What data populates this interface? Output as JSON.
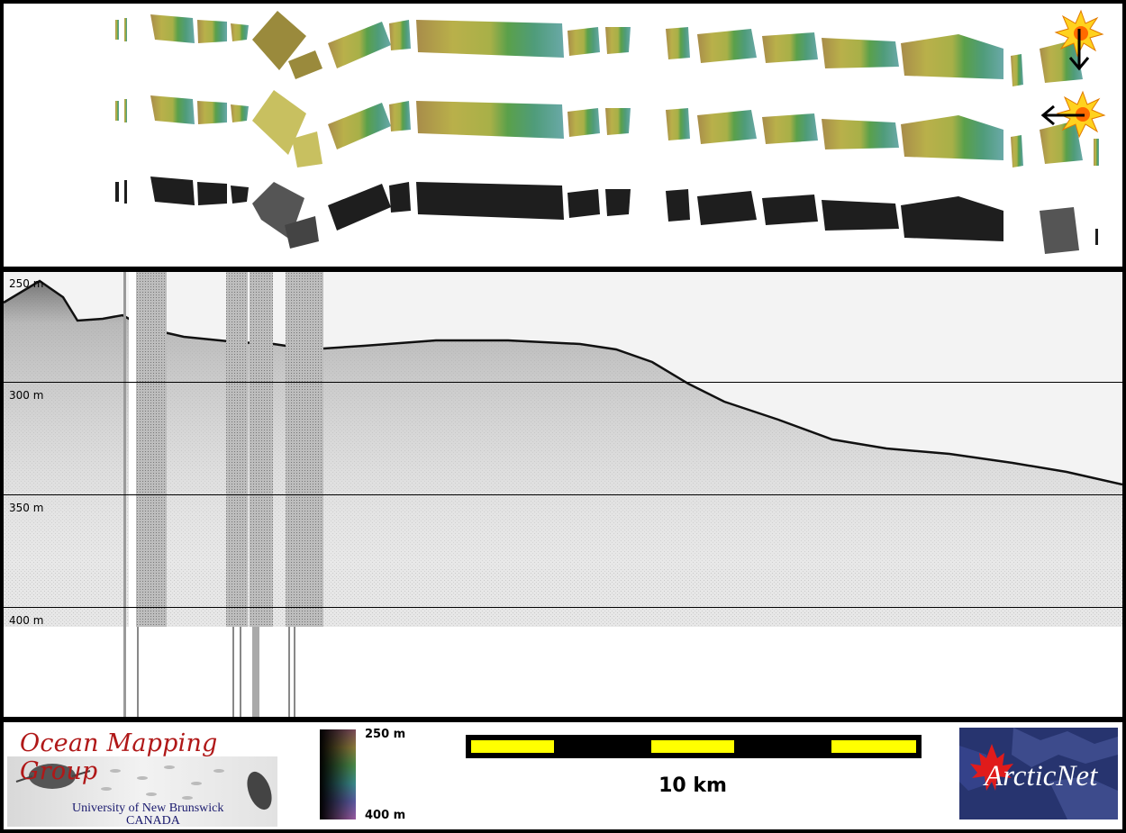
{
  "profile": {
    "depth_labels": [
      "250 m",
      "300 m",
      "350 m",
      "400 m"
    ]
  },
  "footer": {
    "omg_title": "Ocean Mapping Group",
    "omg_university": "University of New Brunswick",
    "omg_country": "CANADA",
    "colorbar_top": "250 m",
    "colorbar_bottom": "400 m",
    "scale_label": "10 km",
    "partner_logo": "ArcticNet",
    "partner_logo_letter": "A",
    "partner_logo_rest": "rcticNet"
  },
  "icons": {
    "sun_top": "sun-burst-icon",
    "arrow_top": "arrow-down-icon",
    "sun_mid": "sun-burst-icon",
    "arrow_mid": "arrow-left-icon"
  },
  "colors": {
    "seabed_olive": "#b5a84a",
    "seabed_teal": "#6aa9a0",
    "title_red": "#b01818",
    "scale_yellow": "#ffff00",
    "arctic_blue": "#27346f"
  }
}
